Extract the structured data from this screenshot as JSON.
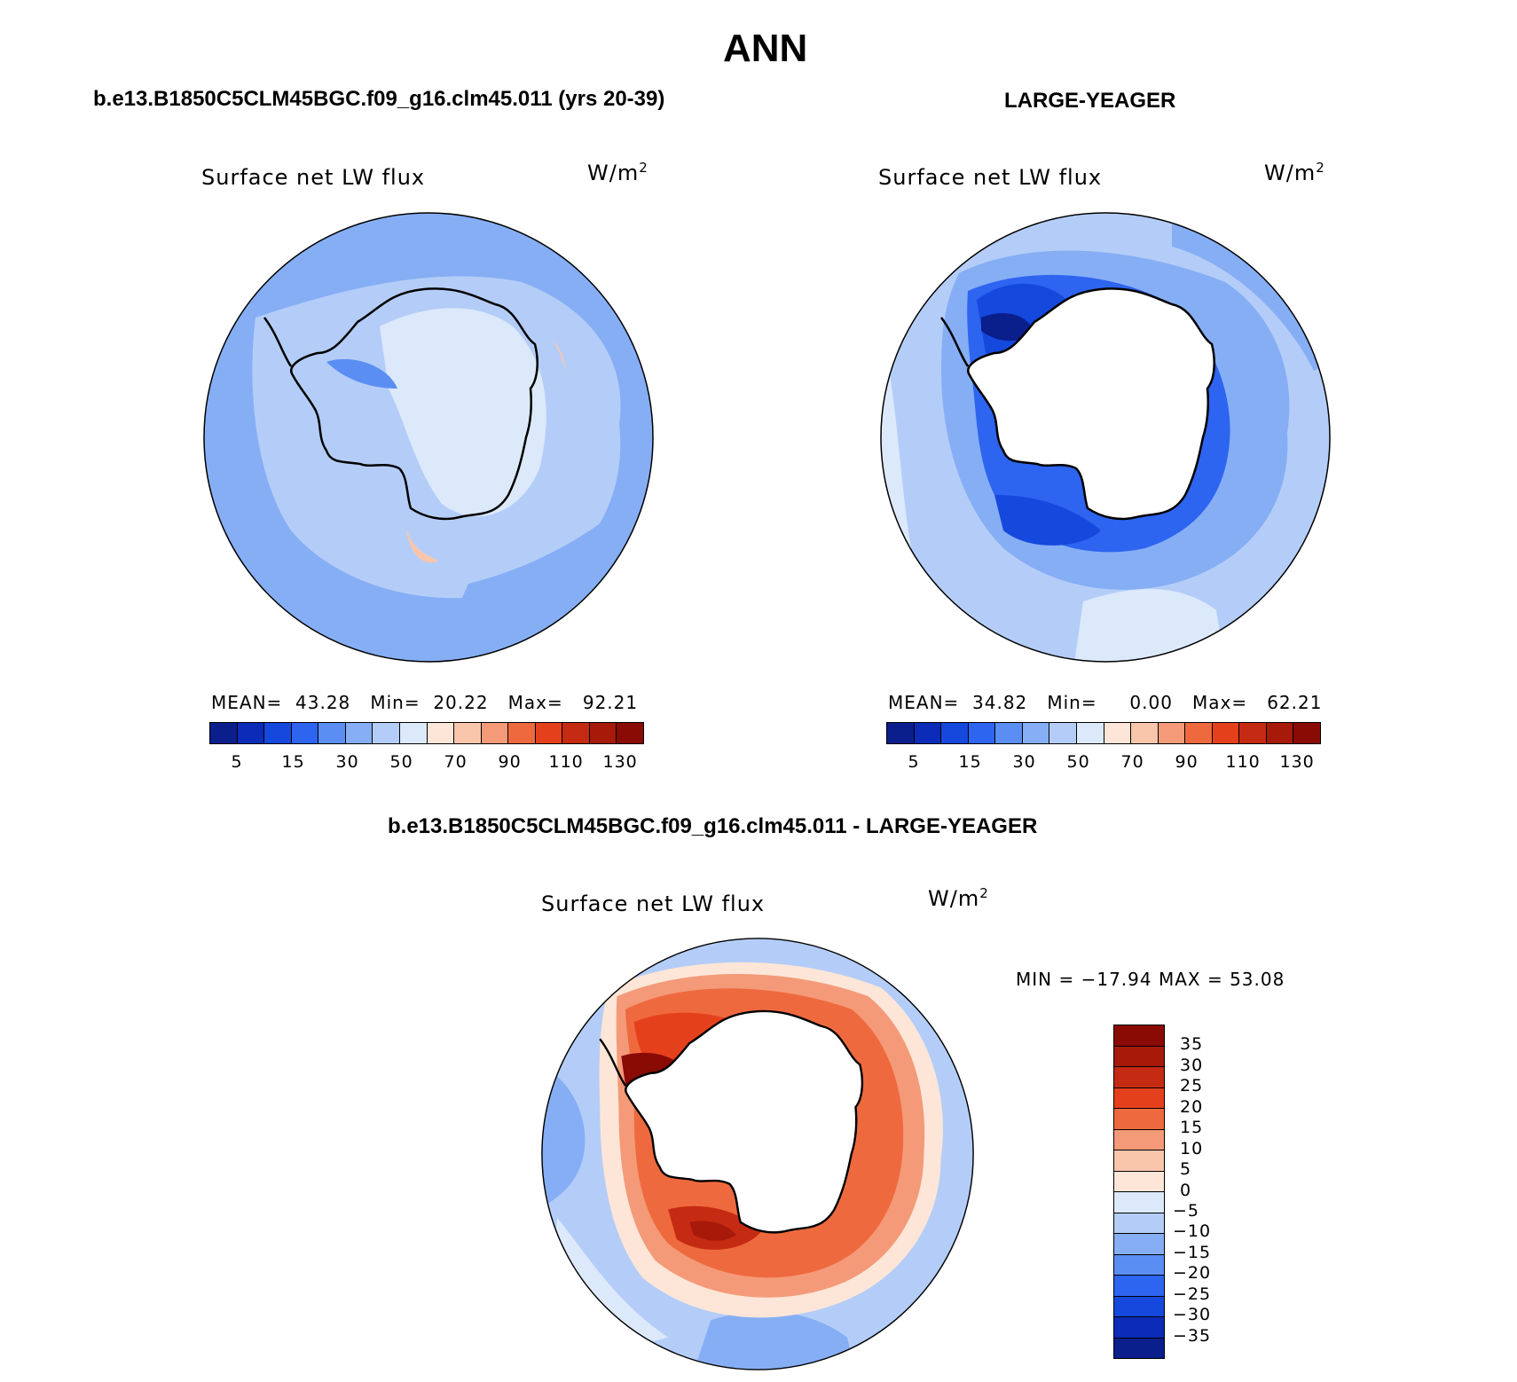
{
  "title": "ANN",
  "panels": {
    "model": {
      "case": "b.e13.B1850C5CLM45BGC.f09_g16.clm45.011 (yrs 20-39)",
      "variable": "Surface net LW flux",
      "units": "W/m",
      "units_exp": "2",
      "stats": {
        "mean_label": "MEAN=",
        "mean": "43.28",
        "min_label": "Min=",
        "min": "20.22",
        "max_label": "Max=",
        "max": "92.21"
      }
    },
    "obs": {
      "case": "LARGE-YEAGER",
      "variable": "Surface net LW flux",
      "units": "W/m",
      "units_exp": "2",
      "stats": {
        "mean_label": "MEAN=",
        "mean": "34.82",
        "min_label": "Min=",
        "min": "0.00",
        "max_label": "Max=",
        "max": "62.21"
      }
    },
    "diff": {
      "case": "b.e13.B1850C5CLM45BGC.f09_g16.clm45.011 - LARGE-YEAGER",
      "variable": "Surface net LW flux",
      "units": "W/m",
      "units_exp": "2",
      "minmax": "MIN = −17.94 MAX =  53.08"
    }
  },
  "colorbar_abs": {
    "colors": [
      "#0a1e8c",
      "#0a2cb8",
      "#1548dc",
      "#2d64f0",
      "#5a8ef2",
      "#86aef5",
      "#b4cdf8",
      "#dce9fb",
      "#fde6d8",
      "#f9c6ac",
      "#f49a78",
      "#ee6a3e",
      "#e5401c",
      "#c52a12",
      "#a71a0a",
      "#8a0a04"
    ],
    "ticks": [
      "5",
      "15",
      "30",
      "50",
      "70",
      "90",
      "110",
      "130"
    ]
  },
  "colorbar_diff": {
    "colors": [
      "#8a0a04",
      "#a71a0a",
      "#c52a12",
      "#e5401c",
      "#ee6a3e",
      "#f49a78",
      "#f9c6ac",
      "#fde6d8",
      "#dce9fb",
      "#b4cdf8",
      "#86aef5",
      "#5a8ef2",
      "#2d64f0",
      "#1548dc",
      "#0a2cb8",
      "#0a1e8c"
    ],
    "ticks": [
      "35",
      "30",
      "25",
      "20",
      "15",
      "10",
      "5",
      "0",
      "−5",
      "−10",
      "−15",
      "−20",
      "−25",
      "−30",
      "−35"
    ]
  },
  "chart_data": [
    {
      "type": "heatmap",
      "title": "Surface net LW flux",
      "case": "b.e13.B1850C5CLM45BGC.f09_g16.clm45.011 (yrs 20-39)",
      "units": "W/m2",
      "projection": "south-polar stereographic",
      "mean": 43.28,
      "min": 20.22,
      "max": 92.21,
      "levels": [
        5,
        10,
        15,
        20,
        30,
        40,
        50,
        60,
        70,
        80,
        90,
        100,
        110,
        120,
        130
      ]
    },
    {
      "type": "heatmap",
      "title": "Surface net LW flux",
      "case": "LARGE-YEAGER",
      "units": "W/m2",
      "projection": "south-polar stereographic",
      "mean": 34.82,
      "min": 0.0,
      "max": 62.21,
      "levels": [
        5,
        10,
        15,
        20,
        30,
        40,
        50,
        60,
        70,
        80,
        90,
        100,
        110,
        120,
        130
      ]
    },
    {
      "type": "heatmap",
      "title": "Surface net LW flux",
      "case": "b.e13.B1850C5CLM45BGC.f09_g16.clm45.011 - LARGE-YEAGER",
      "units": "W/m2",
      "projection": "south-polar stereographic",
      "min": -17.94,
      "max": 53.08,
      "levels": [
        35,
        30,
        25,
        20,
        15,
        10,
        5,
        0,
        -5,
        -10,
        -15,
        -20,
        -25,
        -30,
        -35
      ]
    }
  ]
}
